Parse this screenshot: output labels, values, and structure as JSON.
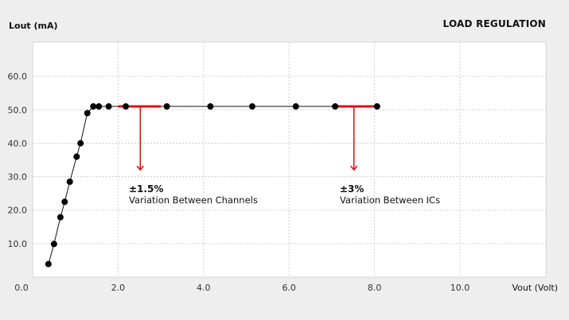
{
  "chart_data": {
    "type": "line",
    "title": "LOAD REGULATION",
    "xlabel": "Vout (Volt)",
    "ylabel": "Lout (mA)",
    "xlim": [
      0,
      12
    ],
    "ylim": [
      0,
      70
    ],
    "xticks": [
      "0.0",
      "2.0",
      "4.0",
      "6.0",
      "8.0",
      "10.0"
    ],
    "xtick_values": [
      0,
      2,
      4,
      6,
      8,
      10
    ],
    "yticks": [
      "10.0",
      "20.0",
      "30.0",
      "40.0",
      "50.0",
      "60.0"
    ],
    "ytick_values": [
      10,
      20,
      30,
      40,
      50,
      60
    ],
    "grid": true,
    "series": [
      {
        "x": [
          0.37,
          0.5,
          0.65,
          0.75,
          0.87,
          1.03,
          1.12,
          1.28,
          1.42,
          1.55,
          1.78,
          2.18,
          3.14,
          4.16,
          5.14,
          6.16,
          7.08,
          8.06
        ],
        "y": [
          3.9,
          9.9,
          17.9,
          22.5,
          28.5,
          36.0,
          40.0,
          49.0,
          51.0,
          51.0,
          51.0,
          51.0,
          51.0,
          51.0,
          51.0,
          51.0,
          51.0,
          51.0
        ]
      }
    ],
    "annotations": [
      {
        "value": "±1.5%",
        "text": "Variation Between Channels",
        "x_range": [
          2.0,
          3.0
        ],
        "y": 51.0
      },
      {
        "value": "±3%",
        "text": "Variation Between ICs",
        "x_range": [
          7.0,
          8.0
        ],
        "y": 51.0
      }
    ],
    "colors": {
      "line": "#111111",
      "marker": "#000000",
      "annotation": "#e01010",
      "grid": "#cfcfcf",
      "plot_bg": "#ffffff",
      "page_bg": "#eeeeee"
    }
  }
}
